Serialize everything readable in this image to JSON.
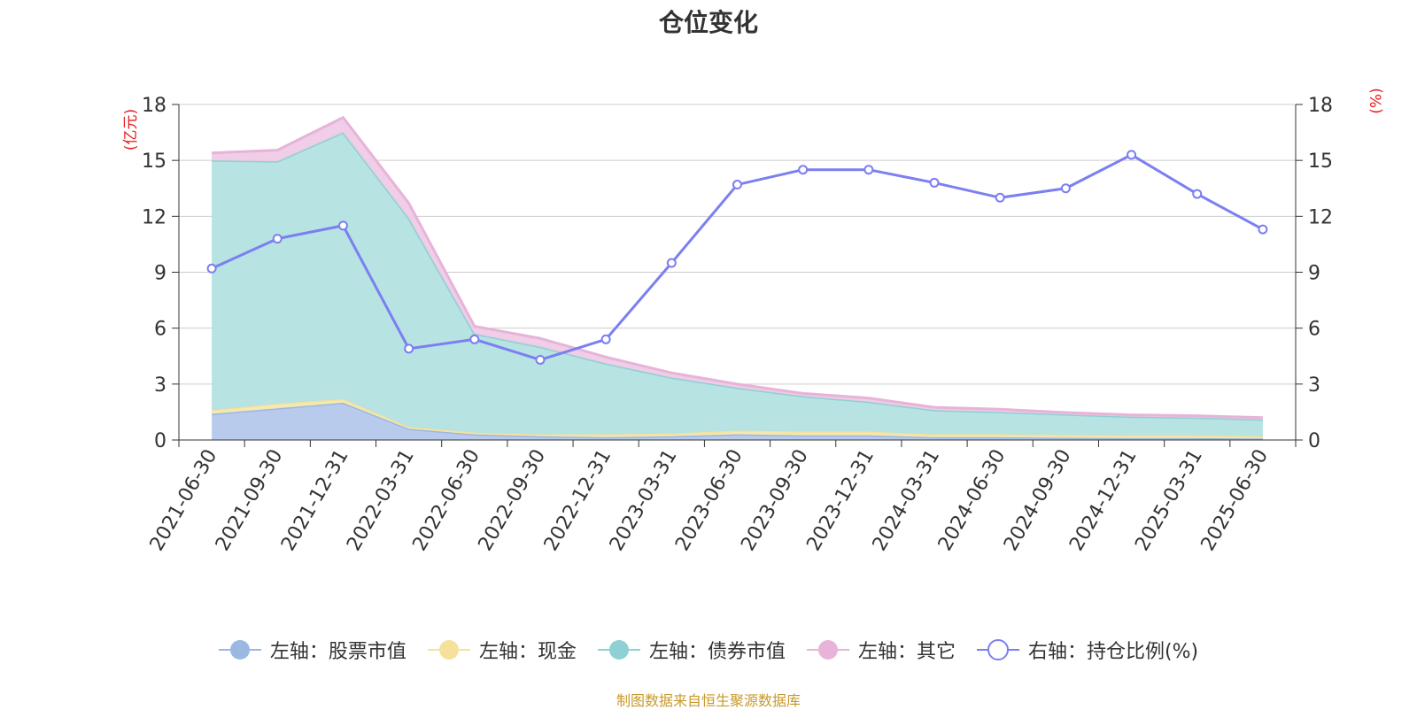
{
  "chart_data": {
    "type": "area",
    "title": "仓位变化",
    "left_unit": "(亿元)",
    "right_unit": "(%)",
    "categories": [
      "2021-06-30",
      "2021-09-30",
      "2021-12-31",
      "2022-03-31",
      "2022-06-30",
      "2022-09-30",
      "2022-12-31",
      "2023-03-31",
      "2023-06-30",
      "2023-09-30",
      "2023-12-31",
      "2024-03-31",
      "2024-06-30",
      "2024-09-30",
      "2024-12-31",
      "2025-03-31",
      "2025-06-30"
    ],
    "ylim_left": [
      0,
      18
    ],
    "ylim_right": [
      0,
      18
    ],
    "yticks_left": [
      0,
      3,
      6,
      9,
      12,
      15,
      18
    ],
    "yticks_right": [
      0,
      3,
      6,
      9,
      12,
      15,
      18
    ],
    "stacked_series": [
      {
        "name": "左轴：股票市值",
        "color": "#9bb8e3",
        "fill": "#b4c8ec",
        "values": [
          1.4,
          1.7,
          2.0,
          0.6,
          0.3,
          0.2,
          0.15,
          0.2,
          0.3,
          0.25,
          0.25,
          0.15,
          0.15,
          0.12,
          0.1,
          0.1,
          0.08
        ]
      },
      {
        "name": "左轴：现金",
        "color": "#f5e19a",
        "fill": "#f7e8b0",
        "values": [
          0.2,
          0.25,
          0.2,
          0.1,
          0.1,
          0.1,
          0.15,
          0.15,
          0.2,
          0.2,
          0.2,
          0.15,
          0.15,
          0.15,
          0.15,
          0.15,
          0.12
        ]
      },
      {
        "name": "左轴：债券市值",
        "color": "#8ed0d3",
        "fill": "#b4e1e2",
        "values": [
          13.4,
          13.0,
          14.3,
          11.2,
          5.3,
          4.7,
          3.8,
          3.0,
          2.3,
          1.9,
          1.6,
          1.3,
          1.2,
          1.1,
          1.0,
          0.95,
          0.9
        ]
      },
      {
        "name": "左轴：其它",
        "color": "#e7b3d9",
        "fill": "#efcbe6",
        "values": [
          0.4,
          0.6,
          0.8,
          0.8,
          0.4,
          0.45,
          0.35,
          0.25,
          0.2,
          0.15,
          0.2,
          0.15,
          0.15,
          0.1,
          0.1,
          0.1,
          0.1
        ]
      }
    ],
    "line_series": {
      "name": "右轴：持仓比例(%)",
      "color": "#7b7ff0",
      "values": [
        9.2,
        10.8,
        11.5,
        4.9,
        5.4,
        4.3,
        5.4,
        9.5,
        13.7,
        14.5,
        14.5,
        13.8,
        13.0,
        13.5,
        15.3,
        13.2,
        11.3
      ]
    },
    "legend_position": "bottom",
    "grid": true
  },
  "footer": {
    "source": "制图数据来自恒生聚源数据库"
  }
}
